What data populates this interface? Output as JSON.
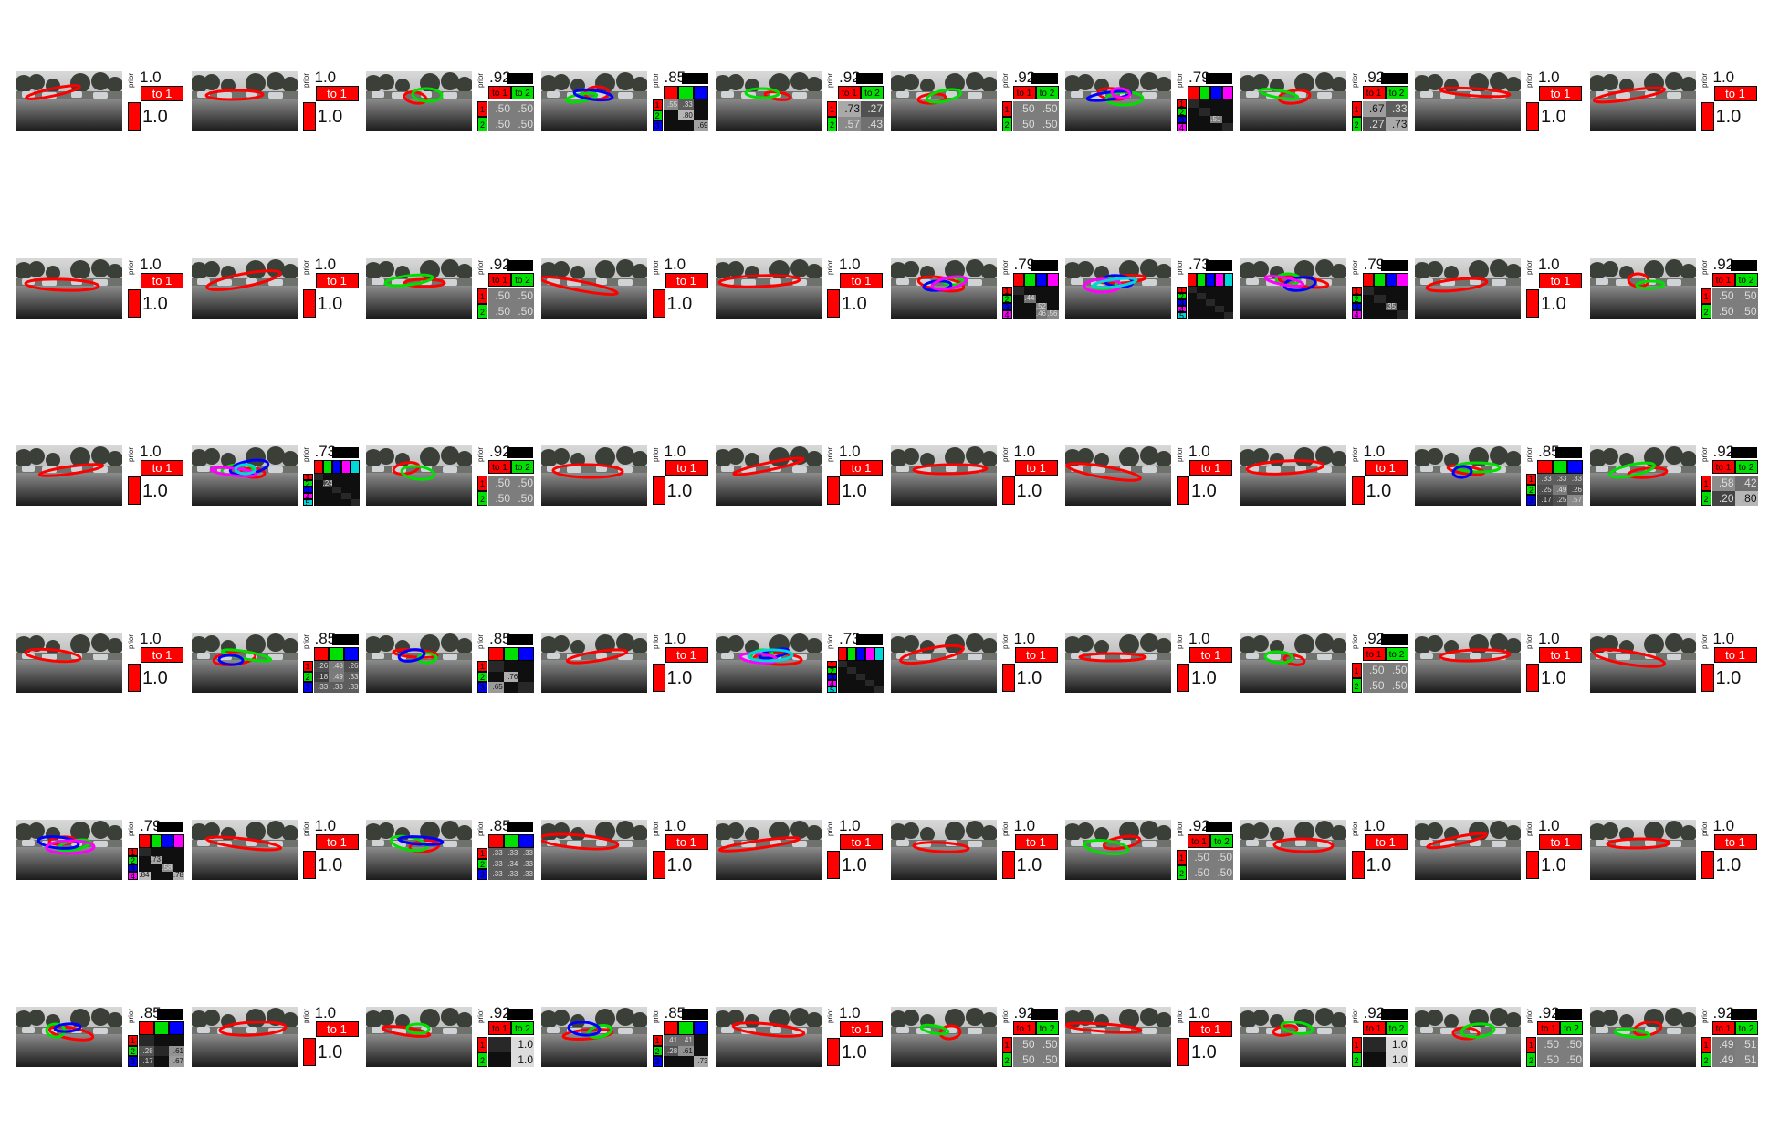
{
  "colors": {
    "mode1": "#ff0000",
    "mode2": "#00e000",
    "mode3": "#0000ff",
    "mode4": "#ff00ff",
    "mode5": "#00d8d8"
  },
  "panels": [
    [
      {
        "modes": 1,
        "prior": "1.0",
        "header": "to 1",
        "value": "1.0"
      },
      {
        "modes": 1,
        "prior": "1.0",
        "header": "to 1",
        "value": "1.0"
      },
      {
        "modes": 2,
        "prior": ".92",
        "headers": [
          "to 1",
          "to 2"
        ],
        "labels": [
          "1",
          "2"
        ],
        "values": [
          [
            ".50",
            ".50"
          ],
          [
            ".50",
            ".50"
          ]
        ]
      },
      {
        "modes": 3,
        "prior": ".85",
        "labels": [
          "1",
          "2",
          "3"
        ],
        "values": [
          [
            ".55",
            ".33",
            ""
          ],
          [
            "",
            ".80",
            ""
          ],
          [
            "",
            "",
            ".69"
          ]
        ]
      },
      {
        "modes": 2,
        "prior": ".92",
        "headers": [
          "to 1",
          "to 2"
        ],
        "labels": [
          "1",
          "2"
        ],
        "values": [
          [
            ".73",
            ".27"
          ],
          [
            ".57",
            ".43"
          ]
        ]
      },
      {
        "modes": 2,
        "prior": ".92",
        "headers": [
          "to 1",
          "to 2"
        ],
        "labels": [
          "1",
          "2"
        ],
        "values": [
          [
            ".50",
            ".50"
          ],
          [
            ".50",
            ".50"
          ]
        ]
      },
      {
        "modes": 4,
        "prior": ".79",
        "labels": [
          "1",
          "2",
          "3",
          "4"
        ],
        "values": [
          [
            "",
            "",
            "",
            ""
          ],
          [
            "",
            "",
            "",
            ""
          ],
          [
            "",
            "",
            ".51",
            ""
          ],
          [
            "",
            "",
            "",
            ""
          ]
        ]
      },
      {
        "modes": 2,
        "prior": ".92",
        "headers": [
          "to 1",
          "to 2"
        ],
        "labels": [
          "1",
          "2"
        ],
        "values": [
          [
            ".67",
            ".33"
          ],
          [
            ".27",
            ".73"
          ]
        ]
      },
      {
        "modes": 1,
        "prior": "1.0",
        "header": "to 1",
        "value": "1.0"
      },
      {
        "modes": 1,
        "prior": "1.0",
        "header": "to 1",
        "value": "1.0"
      }
    ],
    [
      {
        "modes": 1,
        "prior": "1.0",
        "header": "to 1",
        "value": "1.0"
      },
      {
        "modes": 1,
        "prior": "1.0",
        "header": "to 1",
        "value": "1.0"
      },
      {
        "modes": 2,
        "prior": ".92",
        "headers": [
          "to 1",
          "to 2"
        ],
        "labels": [
          "1",
          "2"
        ],
        "values": [
          [
            ".50",
            ".50"
          ],
          [
            ".50",
            ".50"
          ]
        ]
      },
      {
        "modes": 1,
        "prior": "1.0",
        "header": "to 1",
        "value": "1.0"
      },
      {
        "modes": 1,
        "prior": "1.0",
        "header": "to 1",
        "value": "1.0"
      },
      {
        "modes": 4,
        "prior": ".79",
        "labels": [
          "1",
          "2",
          "3",
          "4"
        ],
        "values": [
          [
            "",
            "",
            "",
            ""
          ],
          [
            "",
            ".44",
            "",
            ""
          ],
          [
            "",
            "",
            ".52",
            ""
          ],
          [
            "",
            "",
            ".46",
            ".56"
          ]
        ]
      },
      {
        "modes": 5,
        "prior": ".73",
        "labels": [
          "1",
          "2",
          "3",
          "4",
          "5"
        ],
        "values": [
          [
            "",
            "",
            "",
            "",
            ""
          ],
          [
            "",
            "",
            "",
            "",
            ""
          ],
          [
            "",
            "",
            "",
            "",
            ""
          ],
          [
            "",
            "",
            "",
            "",
            ""
          ],
          [
            "",
            "",
            "",
            "",
            ""
          ]
        ]
      },
      {
        "modes": 4,
        "prior": ".79",
        "labels": [
          "1",
          "2",
          "3",
          "4"
        ],
        "values": [
          [
            "",
            "",
            "",
            ""
          ],
          [
            "",
            "",
            "",
            ""
          ],
          [
            "",
            "",
            ".35",
            ""
          ],
          [
            "",
            "",
            "",
            ""
          ]
        ]
      },
      {
        "modes": 1,
        "prior": "1.0",
        "header": "to 1",
        "value": "1.0"
      },
      {
        "modes": 2,
        "prior": ".92",
        "headers": [
          "to 1",
          "to 2"
        ],
        "labels": [
          "1",
          "2"
        ],
        "values": [
          [
            ".50",
            ".50"
          ],
          [
            ".50",
            ".50"
          ]
        ]
      }
    ],
    [
      {
        "modes": 1,
        "prior": "1.0",
        "header": "to 1",
        "value": "1.0"
      },
      {
        "modes": 5,
        "prior": ".73",
        "labels": [
          "1",
          "2",
          "3",
          "4",
          "5"
        ],
        "values": [
          [
            "",
            "",
            "",
            "",
            ""
          ],
          [
            "",
            ".24",
            "",
            "",
            ""
          ],
          [
            "",
            "",
            "",
            "",
            ""
          ],
          [
            "",
            "",
            "",
            "",
            ""
          ],
          [
            "",
            "",
            "",
            "",
            ""
          ]
        ]
      },
      {
        "modes": 2,
        "prior": ".92",
        "headers": [
          "to 1",
          "to 2"
        ],
        "labels": [
          "1",
          "2"
        ],
        "values": [
          [
            ".50",
            ".50"
          ],
          [
            ".50",
            ".50"
          ]
        ]
      },
      {
        "modes": 1,
        "prior": "1.0",
        "header": "to 1",
        "value": "1.0"
      },
      {
        "modes": 1,
        "prior": "1.0",
        "header": "to 1",
        "value": "1.0"
      },
      {
        "modes": 1,
        "prior": "1.0",
        "header": "to 1",
        "value": "1.0"
      },
      {
        "modes": 1,
        "prior": "1.0",
        "header": "to 1",
        "value": "1.0"
      },
      {
        "modes": 1,
        "prior": "1.0",
        "header": "to 1",
        "value": "1.0"
      },
      {
        "modes": 3,
        "prior": ".85",
        "labels": [
          "1",
          "2",
          "3"
        ],
        "values": [
          [
            ".33",
            ".33",
            ".33"
          ],
          [
            ".25",
            ".49",
            ".26"
          ],
          [
            ".17",
            ".25",
            ".57"
          ]
        ]
      },
      {
        "modes": 2,
        "prior": ".92",
        "headers": [
          "to 1",
          "to 2"
        ],
        "labels": [
          "1",
          "2"
        ],
        "values": [
          [
            ".58",
            ".42"
          ],
          [
            ".20",
            ".80"
          ]
        ]
      }
    ],
    [
      {
        "modes": 1,
        "prior": "1.0",
        "header": "to 1",
        "value": "1.0"
      },
      {
        "modes": 3,
        "prior": ".85",
        "labels": [
          "1",
          "2",
          "3"
        ],
        "values": [
          [
            ".26",
            ".48",
            ".26"
          ],
          [
            ".18",
            ".49",
            ".33"
          ],
          [
            ".33",
            ".33",
            ".33"
          ]
        ]
      },
      {
        "modes": 3,
        "prior": ".85",
        "labels": [
          "1",
          "2",
          "3"
        ],
        "values": [
          [
            "",
            "",
            ""
          ],
          [
            "",
            ".76",
            ""
          ],
          [
            ".65",
            "",
            ""
          ]
        ]
      },
      {
        "modes": 1,
        "prior": "1.0",
        "header": "to 1",
        "value": "1.0"
      },
      {
        "modes": 5,
        "prior": ".73",
        "labels": [
          "1",
          "2",
          "3",
          "4",
          "5"
        ],
        "values": [
          [
            "",
            "",
            "",
            "",
            ""
          ],
          [
            "",
            "",
            "",
            "",
            ""
          ],
          [
            "",
            "",
            "",
            "",
            ""
          ],
          [
            "",
            "",
            "",
            "",
            ""
          ],
          [
            "",
            "",
            "",
            "",
            ""
          ]
        ]
      },
      {
        "modes": 1,
        "prior": "1.0",
        "header": "to 1",
        "value": "1.0"
      },
      {
        "modes": 1,
        "prior": "1.0",
        "header": "to 1",
        "value": "1.0"
      },
      {
        "modes": 2,
        "prior": ".92",
        "headers": [
          "to 1",
          "to 2"
        ],
        "labels": [
          "1",
          "2"
        ],
        "values": [
          [
            ".50",
            ".50"
          ],
          [
            ".50",
            ".50"
          ]
        ]
      },
      {
        "modes": 1,
        "prior": "1.0",
        "header": "to 1",
        "value": "1.0"
      },
      {
        "modes": 1,
        "prior": "1.0",
        "header": "to 1",
        "value": "1.0"
      }
    ],
    [
      {
        "modes": 4,
        "prior": ".79",
        "labels": [
          "1",
          "2",
          "3",
          "4"
        ],
        "values": [
          [
            "",
            "",
            "",
            ""
          ],
          [
            "",
            ".73",
            "",
            ""
          ],
          [
            "",
            "",
            ".58",
            ""
          ],
          [
            ".84",
            "",
            "",
            ".78"
          ]
        ]
      },
      {
        "modes": 1,
        "prior": "1.0",
        "header": "to 1",
        "value": "1.0"
      },
      {
        "modes": 3,
        "prior": ".85",
        "labels": [
          "1",
          "2",
          "3"
        ],
        "values": [
          [
            ".33",
            ".33",
            ".33"
          ],
          [
            ".33",
            ".34",
            ".33"
          ],
          [
            ".33",
            ".33",
            ".33"
          ]
        ]
      },
      {
        "modes": 1,
        "prior": "1.0",
        "header": "to 1",
        "value": "1.0"
      },
      {
        "modes": 1,
        "prior": "1.0",
        "header": "to 1",
        "value": "1.0"
      },
      {
        "modes": 1,
        "prior": "1.0",
        "header": "to 1",
        "value": "1.0"
      },
      {
        "modes": 2,
        "prior": ".92",
        "headers": [
          "to 1",
          "to 2"
        ],
        "labels": [
          "1",
          "2"
        ],
        "values": [
          [
            ".50",
            ".50"
          ],
          [
            ".50",
            ".50"
          ]
        ]
      },
      {
        "modes": 1,
        "prior": "1.0",
        "header": "to 1",
        "value": "1.0"
      },
      {
        "modes": 1,
        "prior": "1.0",
        "header": "to 1",
        "value": "1.0"
      },
      {
        "modes": 1,
        "prior": "1.0",
        "header": "to 1",
        "value": "1.0"
      }
    ],
    [
      {
        "modes": 3,
        "prior": ".85",
        "labels": [
          "1",
          "2",
          "3"
        ],
        "values": [
          [
            "",
            "",
            ""
          ],
          [
            ".28",
            "",
            ".61"
          ],
          [
            ".17",
            "",
            ".67"
          ]
        ]
      },
      {
        "modes": 1,
        "prior": "1.0",
        "header": "to 1",
        "value": "1.0"
      },
      {
        "modes": 2,
        "prior": ".92",
        "headers": [
          "to 1",
          "to 2"
        ],
        "labels": [
          "1",
          "2"
        ],
        "values": [
          [
            "",
            "1.0"
          ],
          [
            "",
            "1.0"
          ]
        ]
      },
      {
        "modes": 3,
        "prior": ".85",
        "labels": [
          "1",
          "2",
          "3"
        ],
        "values": [
          [
            ".41",
            ".41",
            ""
          ],
          [
            ".28",
            ".61",
            ""
          ],
          [
            "",
            "",
            ".73"
          ]
        ]
      },
      {
        "modes": 1,
        "prior": "1.0",
        "header": "to 1",
        "value": "1.0"
      },
      {
        "modes": 2,
        "prior": ".92",
        "headers": [
          "to 1",
          "to 2"
        ],
        "labels": [
          "1",
          "2"
        ],
        "values": [
          [
            ".50",
            ".50"
          ],
          [
            ".50",
            ".50"
          ]
        ]
      },
      {
        "modes": 1,
        "prior": "1.0",
        "header": "to 1",
        "value": "1.0"
      },
      {
        "modes": 2,
        "prior": ".92",
        "headers": [
          "to 1",
          "to 2"
        ],
        "labels": [
          "1",
          "2"
        ],
        "values": [
          [
            "",
            "1.0"
          ],
          [
            "",
            "1.0"
          ]
        ]
      },
      {
        "modes": 2,
        "prior": ".92",
        "headers": [
          "to 1",
          "to 2"
        ],
        "labels": [
          "1",
          "2"
        ],
        "values": [
          [
            ".50",
            ".50"
          ],
          [
            ".50",
            ".50"
          ]
        ]
      },
      {
        "modes": 2,
        "prior": ".92",
        "headers": [
          "to 1",
          "to 2"
        ],
        "labels": [
          "1",
          "2"
        ],
        "values": [
          [
            ".49",
            ".51"
          ],
          [
            ".49",
            ".51"
          ]
        ]
      }
    ]
  ],
  "prior_label": "prior"
}
